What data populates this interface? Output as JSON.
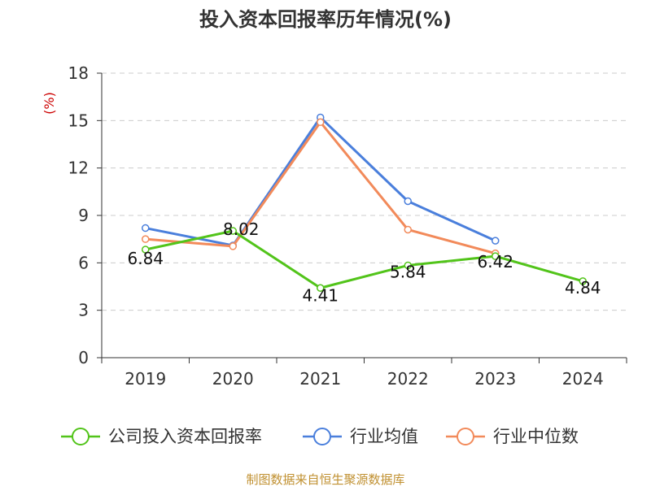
{
  "chart_data": {
    "type": "line",
    "title": "投入资本回报率历年情况(%)",
    "ylabel": "(%)",
    "xlabel": "",
    "categories": [
      "2019",
      "2020",
      "2021",
      "2022",
      "2023",
      "2024"
    ],
    "ylim": [
      0,
      18
    ],
    "yticks": [
      0,
      3,
      6,
      9,
      12,
      15,
      18
    ],
    "grid": true,
    "legend_position": "bottom",
    "series": [
      {
        "name": "公司投入资本回报率",
        "color": "#52c41a",
        "values": [
          6.84,
          8.02,
          4.41,
          5.84,
          6.42,
          4.84
        ],
        "labels": [
          "6.84",
          "8.02",
          "4.41",
          "5.84",
          "6.42",
          "4.84"
        ]
      },
      {
        "name": "行业均值",
        "color": "#4a7fdc",
        "values": [
          8.2,
          7.1,
          15.2,
          9.9,
          7.4,
          null
        ]
      },
      {
        "name": "行业中位数",
        "color": "#f28a5a",
        "values": [
          7.5,
          7.05,
          14.9,
          8.1,
          6.6,
          null
        ]
      }
    ],
    "source_note": "制图数据来自恒生聚源数据库"
  }
}
